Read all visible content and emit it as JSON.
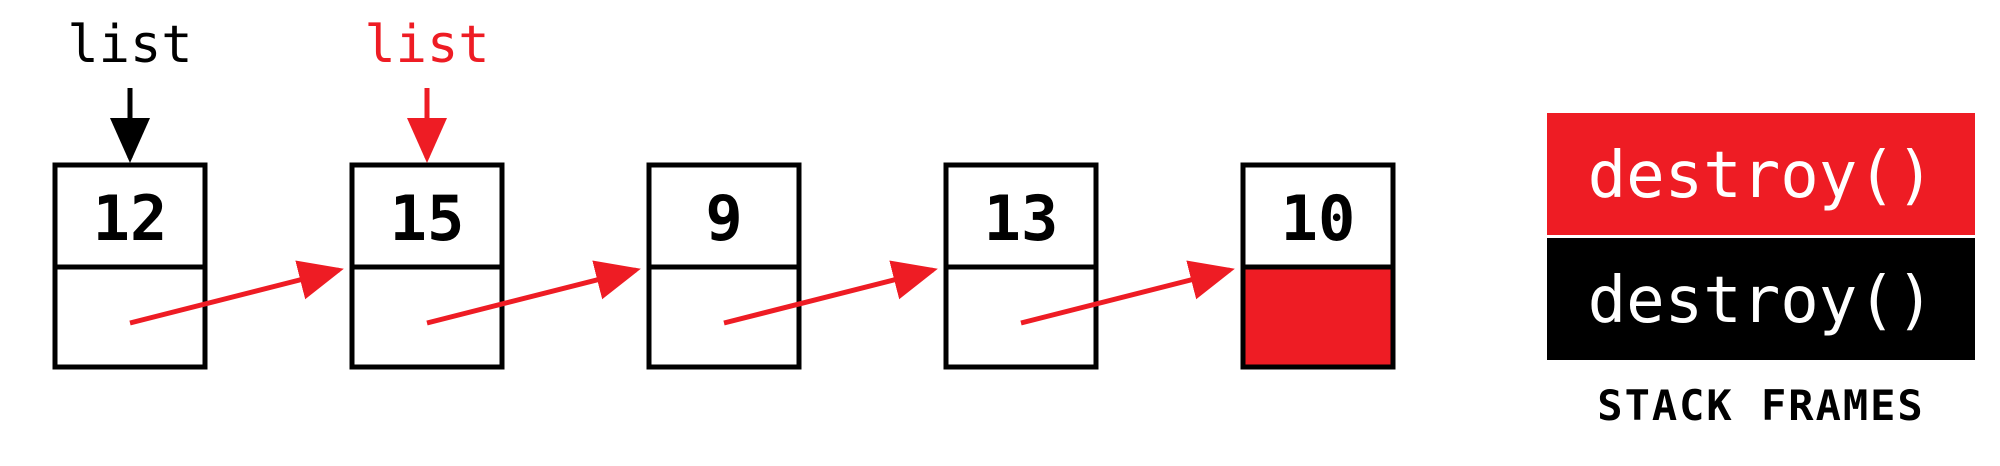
{
  "diagram": {
    "pointers": [
      {
        "label": "list",
        "color": "#000000",
        "node_index": 0
      },
      {
        "label": "list",
        "color": "#ee1c24",
        "node_index": 1
      }
    ],
    "nodes": [
      {
        "value": "12",
        "next_is_null": false
      },
      {
        "value": "15",
        "next_is_null": false
      },
      {
        "value": "9",
        "next_is_null": false
      },
      {
        "value": "13",
        "next_is_null": false
      },
      {
        "value": "10",
        "next_is_null": true
      }
    ],
    "link_color": "#ee1c24",
    "null_fill": "#ee1c24",
    "stack": {
      "title": "STACK FRAMES",
      "frames": [
        {
          "label": "destroy()",
          "background": "#ee1c24",
          "text_color": "#ffffff"
        },
        {
          "label": "destroy()",
          "background": "#000000",
          "text_color": "#ffffff"
        }
      ]
    }
  }
}
